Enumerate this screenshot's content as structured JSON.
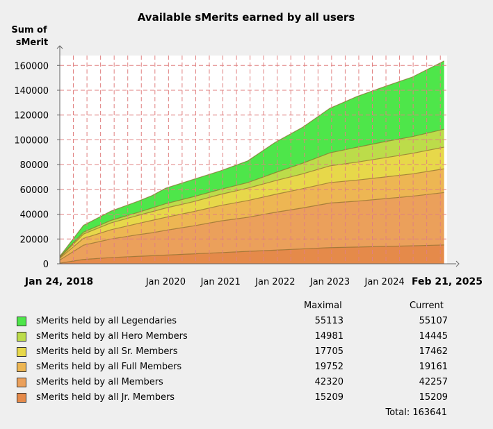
{
  "chart_data": {
    "type": "area",
    "stacked": true,
    "title": "Available sMerits earned by all users",
    "ylabel": "Sum of sMerit",
    "ylim": [
      0,
      168000
    ],
    "yticks": [
      0,
      20000,
      40000,
      60000,
      80000,
      100000,
      120000,
      140000,
      160000
    ],
    "x_start": "Jan 24, 2018",
    "x_end": "Feb 21, 2025",
    "x_tick_labels": [
      "Jan 24, 2018",
      "Jan 2020",
      "Jan 2021",
      "Jan 2022",
      "Jan 2023",
      "Jan 2024",
      "Feb 21, 2025"
    ],
    "grid": true,
    "x": [
      "2018-01",
      "2018-07",
      "2019-01",
      "2019-07",
      "2019-10",
      "2020-01",
      "2020-07",
      "2021-01",
      "2021-07",
      "2022-01",
      "2022-07",
      "2023-01",
      "2023-07",
      "2024-01",
      "2024-07",
      "2025-02"
    ],
    "series": [
      {
        "name": "sMerits held by all Jr. Members",
        "color": "#e58a4a",
        "values": [
          500,
          3500,
          5000,
          6000,
          6500,
          7000,
          8000,
          9000,
          10000,
          11000,
          12000,
          13000,
          13500,
          14000,
          14500,
          15209
        ]
      },
      {
        "name": "sMerits held by all Members",
        "color": "#eba05b",
        "values": [
          2500,
          11500,
          15000,
          17500,
          18500,
          20000,
          22500,
          25500,
          27500,
          30500,
          33000,
          36000,
          37000,
          38500,
          40000,
          42257
        ]
      },
      {
        "name": "sMerits held by all Full Members",
        "color": "#edb653",
        "values": [
          1500,
          5500,
          7500,
          9000,
          10000,
          10500,
          11500,
          12500,
          13500,
          14500,
          15500,
          16500,
          17000,
          17500,
          18000,
          19161
        ]
      },
      {
        "name": "sMerits held by all Sr. Members",
        "color": "#e7d84a",
        "values": [
          500,
          3500,
          5500,
          6500,
          7000,
          7500,
          8000,
          9000,
          10000,
          11000,
          12000,
          13500,
          14500,
          15500,
          16500,
          17462
        ]
      },
      {
        "name": "sMerits held by all Hero Members",
        "color": "#bcdc4a",
        "values": [
          500,
          1500,
          2000,
          2500,
          3000,
          3500,
          4000,
          4000,
          4500,
          6500,
          8500,
          10500,
          12000,
          13000,
          13500,
          14445
        ]
      },
      {
        "name": "sMerits held by all Legendaries",
        "color": "#4ee64a",
        "values": [
          500,
          5500,
          7500,
          9000,
          10000,
          12500,
          14000,
          15000,
          17500,
          24500,
          29000,
          36000,
          41000,
          44500,
          48000,
          55107
        ]
      }
    ]
  },
  "legend": {
    "col_maximal": "Maximal",
    "col_current": "Current",
    "rows": [
      {
        "label": "sMerits held by all Legendaries",
        "maximal": "55113",
        "current": "55107",
        "color": "#4ee64a"
      },
      {
        "label": "sMerits held by all Hero Members",
        "maximal": "14981",
        "current": "14445",
        "color": "#bcdc4a"
      },
      {
        "label": "sMerits held by all Sr. Members",
        "maximal": "17705",
        "current": "17462",
        "color": "#e7d84a"
      },
      {
        "label": "sMerits held by all Full Members",
        "maximal": "19752",
        "current": "19161",
        "color": "#edb653"
      },
      {
        "label": "sMerits held by all Members",
        "maximal": "42320",
        "current": "42257",
        "color": "#eba05b"
      },
      {
        "label": "sMerits held by all Jr. Members",
        "maximal": "15209",
        "current": "15209",
        "color": "#e58a4a"
      }
    ],
    "total": "Total: 163641"
  }
}
